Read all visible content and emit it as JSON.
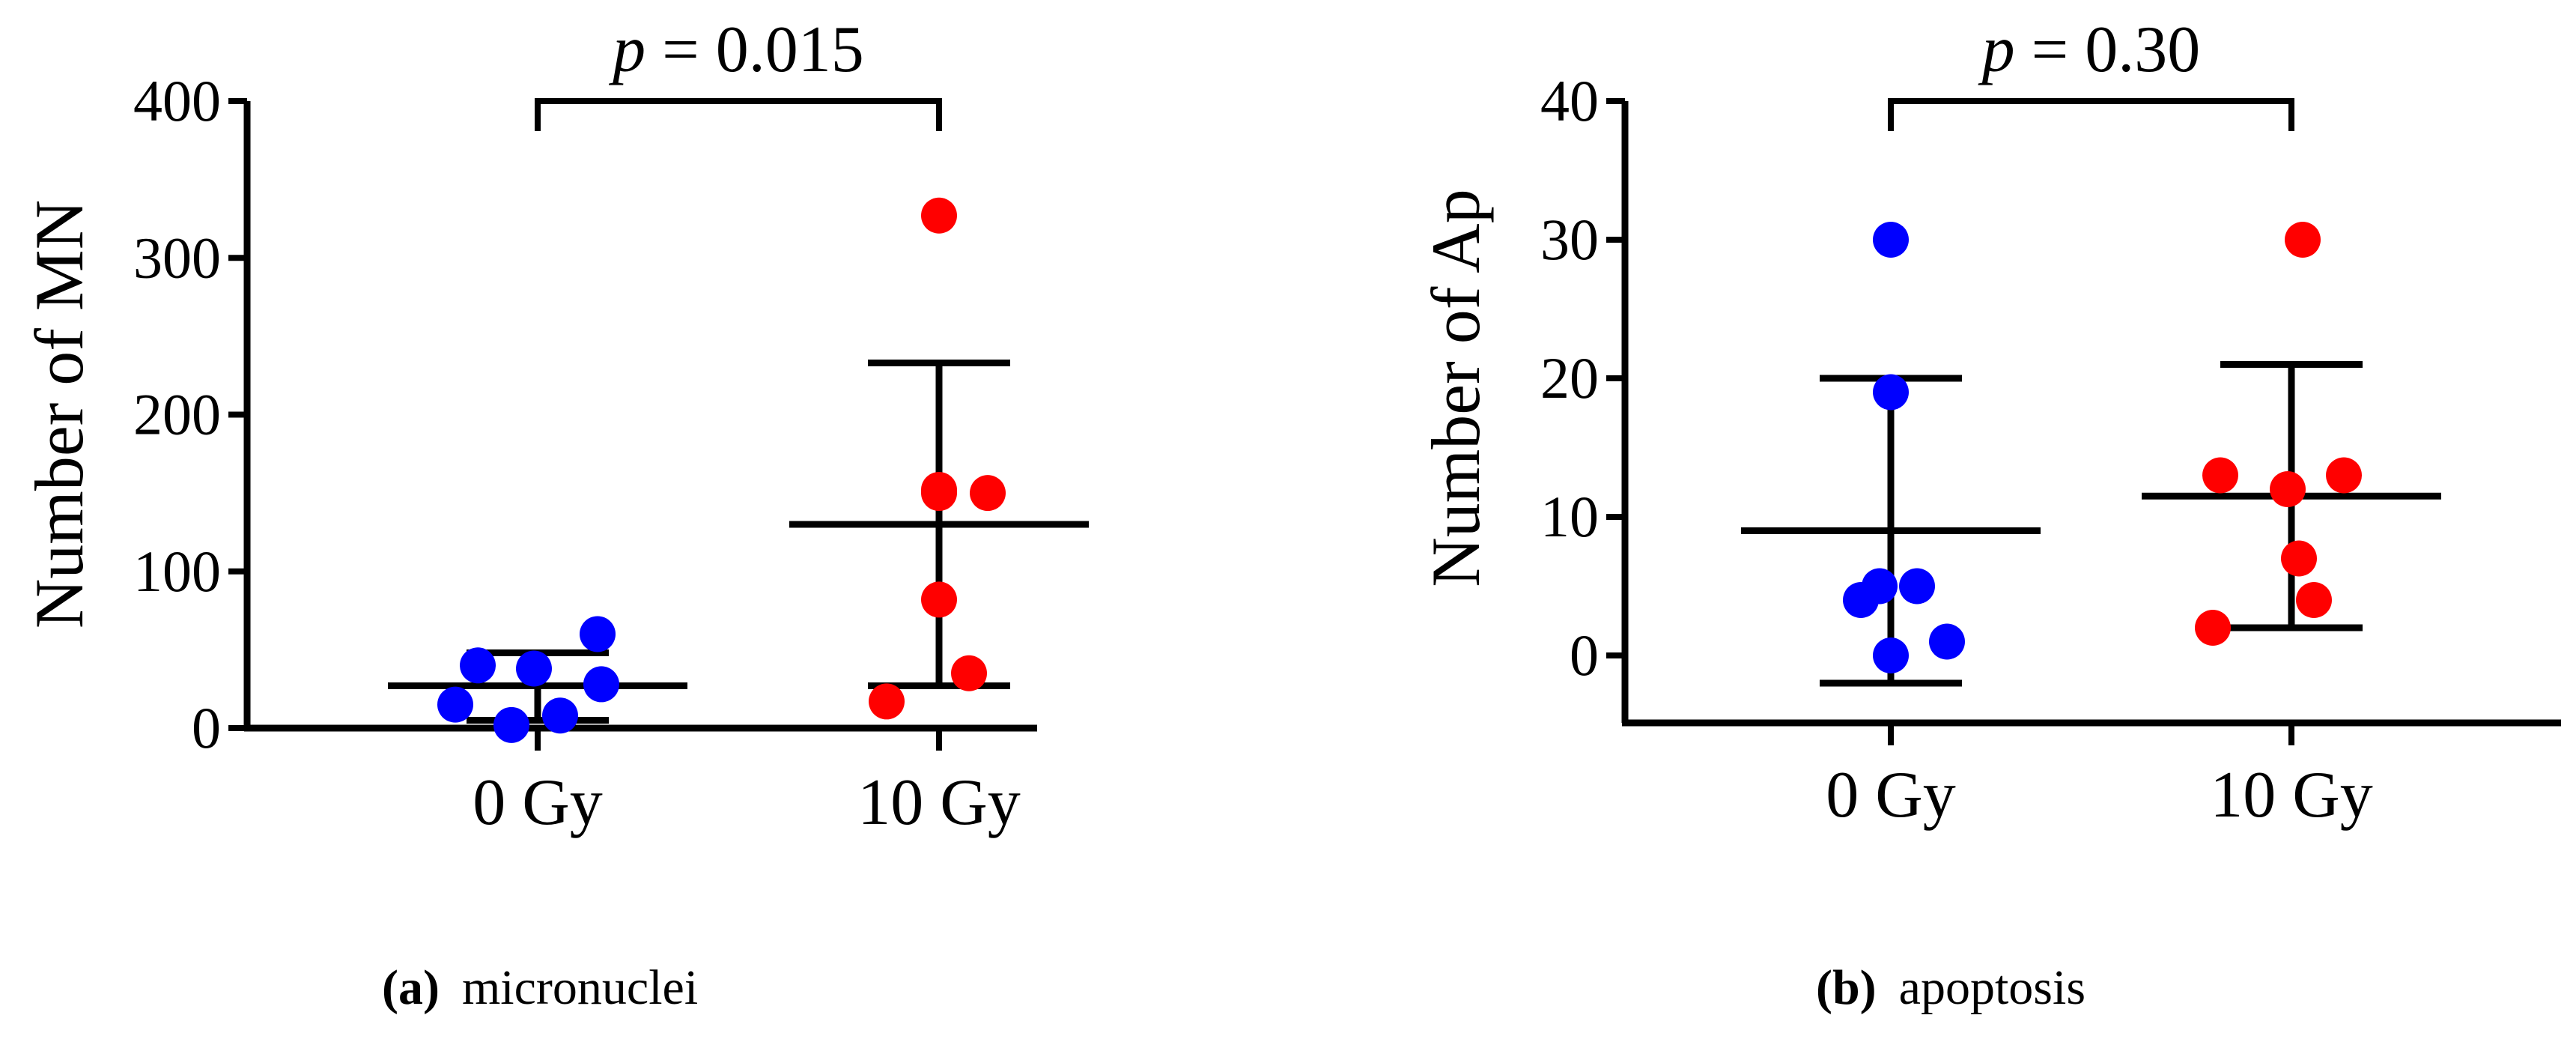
{
  "chart_data": [
    {
      "type": "scatter",
      "ylabel": "Number of MN",
      "xlabel": "",
      "categories": [
        "0 Gy",
        "10 Gy"
      ],
      "yticks": [
        "0",
        "100",
        "200",
        "300",
        "400"
      ],
      "ylim": [
        0,
        400
      ],
      "grid": false,
      "comparison": {
        "p_prefix": "p",
        "p_value": "= 0.015"
      },
      "caption": {
        "tag": "(a)",
        "text": "micronuclei"
      },
      "series": [
        {
          "category": "0 Gy",
          "color": "#0000ff",
          "points": [
            15,
            40,
            2,
            38,
            8,
            28,
            60
          ],
          "mean": 27,
          "error_low": 5,
          "error_high": 48
        },
        {
          "category": "10 Gy",
          "color": "#ff0000",
          "points": [
            17,
            152,
            82,
            150,
            35,
            150,
            327
          ],
          "mean": 130,
          "error_low": 27,
          "error_high": 233
        }
      ]
    },
    {
      "type": "scatter",
      "ylabel": "Number of Ap",
      "xlabel": "",
      "categories": [
        "0 Gy",
        "10 Gy"
      ],
      "yticks": [
        "0",
        "10",
        "20",
        "30",
        "40"
      ],
      "ylim": [
        -5,
        40
      ],
      "grid": false,
      "comparison": {
        "p_prefix": "p",
        "p_value": "= 0.30"
      },
      "caption": {
        "tag": "(b)",
        "text": "apoptosis"
      },
      "series": [
        {
          "category": "0 Gy",
          "color": "#0000ff",
          "points": [
            4,
            5,
            30,
            19,
            0,
            5,
            1
          ],
          "mean": 9,
          "error_low": -2,
          "error_high": 20
        },
        {
          "category": "10 Gy",
          "color": "#ff0000",
          "points": [
            13,
            2,
            12,
            7,
            30,
            4,
            13
          ],
          "mean": 11.5,
          "error_low": 2,
          "error_high": 21
        }
      ]
    }
  ]
}
